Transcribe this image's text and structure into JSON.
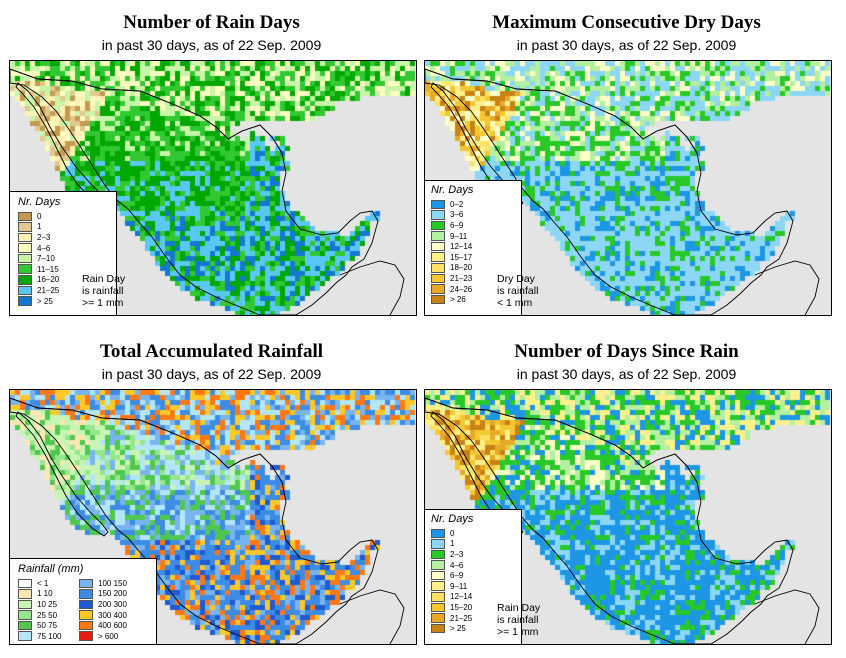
{
  "panels": [
    {
      "id": "rain-days",
      "title": "Number of Rain Days",
      "subtitle": "in past 30 days, as of  22 Sep. 2009",
      "legend_title": "Nr. Days",
      "legend": [
        {
          "label": "0",
          "color": "#c39a50"
        },
        {
          "label": "1",
          "color": "#e2c88c"
        },
        {
          "label": "2–3",
          "color": "#fff0b4"
        },
        {
          "label": "4–6",
          "color": "#fdfdc0"
        },
        {
          "label": "7–10",
          "color": "#c8f5a8"
        },
        {
          "label": "11–15",
          "color": "#32c832"
        },
        {
          "label": "16–20",
          "color": "#00a800"
        },
        {
          "label": "21–25",
          "color": "#5ac8f5"
        },
        {
          "label": "> 25",
          "color": "#1478d2"
        }
      ],
      "note": [
        "Rain Day",
        "is rainfall",
        ">= 1 mm"
      ]
    },
    {
      "id": "max-dry-days",
      "title": "Maximum Consecutive Dry Days",
      "subtitle": "in past 30 days, as of  22 Sep. 2009",
      "legend_title": "Nr. Days",
      "legend": [
        {
          "label": "0–2",
          "color": "#1e96e6"
        },
        {
          "label": "3–6",
          "color": "#8cd7f5"
        },
        {
          "label": "6–9",
          "color": "#28c828"
        },
        {
          "label": "9–11",
          "color": "#b4f0a0"
        },
        {
          "label": "12–14",
          "color": "#ffffc8"
        },
        {
          "label": "15–17",
          "color": "#fff08c"
        },
        {
          "label": "18–20",
          "color": "#ffe164"
        },
        {
          "label": "21–23",
          "color": "#f5c832"
        },
        {
          "label": "24–26",
          "color": "#e6aa28"
        },
        {
          "label": "> 26",
          "color": "#c88214"
        }
      ],
      "note": [
        "Dry Day",
        "is rainfall",
        "< 1 mm"
      ]
    },
    {
      "id": "total-rainfall",
      "title": "Total Accumulated Rainfall",
      "subtitle": "in past 30 days, as of  22 Sep. 2009",
      "legend_title": "Rainfall (mm)",
      "legend": [
        {
          "label": "< 1",
          "color": "#ffffff"
        },
        {
          "label": "1   10",
          "color": "#ffe6b4"
        },
        {
          "label": "10   25",
          "color": "#c8f5b4"
        },
        {
          "label": "25   50",
          "color": "#96e68c"
        },
        {
          "label": "50   75",
          "color": "#50c850"
        },
        {
          "label": "75  100",
          "color": "#b4e6fa"
        },
        {
          "label": "100  150",
          "color": "#78b4f0"
        },
        {
          "label": "150  200",
          "color": "#3c8ce6"
        },
        {
          "label": "200  300",
          "color": "#1e5ad2"
        },
        {
          "label": "300  400",
          "color": "#ffc828"
        },
        {
          "label": "400  600",
          "color": "#ff7814"
        },
        {
          "label": "> 600",
          "color": "#e61e14"
        }
      ],
      "note": []
    },
    {
      "id": "days-since-rain",
      "title": "Number of Days Since Rain",
      "subtitle": "in past 30 days, as of  22 Sep. 2009",
      "legend_title": "Nr. Days",
      "legend": [
        {
          "label": "0",
          "color": "#1e96e6"
        },
        {
          "label": "1",
          "color": "#8cd7f5"
        },
        {
          "label": "2–3",
          "color": "#28c828"
        },
        {
          "label": "4–6",
          "color": "#b4f0a0"
        },
        {
          "label": "6–9",
          "color": "#ffffc8"
        },
        {
          "label": "9–11",
          "color": "#fff08c"
        },
        {
          "label": "12–14",
          "color": "#ffe164"
        },
        {
          "label": "15–20",
          "color": "#f5c832"
        },
        {
          "label": "21–25",
          "color": "#e6aa28"
        },
        {
          "label": "> 25",
          "color": "#c88214"
        }
      ],
      "note": [
        "Rain Day",
        "is rainfall",
        ">= 1 mm"
      ]
    }
  ],
  "colors": {
    "ocean": "#e4e4e4",
    "us_land": "#ffffff",
    "border": "#000000"
  }
}
